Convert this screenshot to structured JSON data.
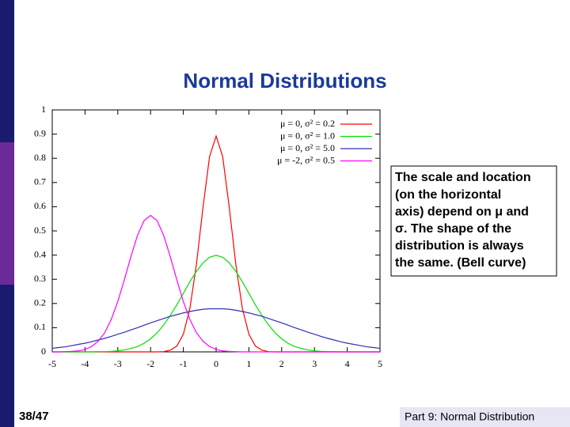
{
  "slide": {
    "title": "Normal Distributions",
    "callout": [
      "The scale and location",
      "(on the horizontal",
      "axis) depend on μ and",
      "σ.  The shape of the",
      "distribution is always",
      "the same. (Bell curve)"
    ],
    "page_number": "38/47",
    "footer": "Part 9: Normal Distribution"
  },
  "chart_data": {
    "type": "line",
    "x": [
      -5,
      -4.8,
      -4.6,
      -4.4,
      -4.2,
      -4,
      -3.8,
      -3.6,
      -3.4,
      -3.2,
      -3,
      -2.8,
      -2.6,
      -2.4,
      -2.2,
      -2,
      -1.8,
      -1.6,
      -1.4,
      -1.2,
      -1,
      -0.8,
      -0.6,
      -0.4,
      -0.2,
      0,
      0.2,
      0.4,
      0.6,
      0.8,
      1,
      1.2,
      1.4,
      1.6,
      1.8,
      2,
      2.2,
      2.4,
      2.6,
      2.8,
      3,
      3.2,
      3.4,
      3.6,
      3.8,
      4,
      4.2,
      4.4,
      4.6,
      4.8,
      5
    ],
    "series": [
      {
        "name": "μ =  0, σ² = 0.2",
        "color": "#ff0000",
        "values": [
          0,
          0,
          0,
          0,
          0,
          0,
          0,
          0,
          0,
          0,
          0,
          0,
          0,
          0,
          0,
          0,
          0,
          0.001,
          0.007,
          0.024,
          0.073,
          0.18,
          0.363,
          0.598,
          0.807,
          0.892,
          0.807,
          0.598,
          0.363,
          0.18,
          0.073,
          0.024,
          0.007,
          0.001,
          0,
          0,
          0,
          0,
          0,
          0,
          0,
          0,
          0,
          0,
          0,
          0,
          0,
          0,
          0,
          0,
          0
        ]
      },
      {
        "name": "μ =  0, σ² = 1.0",
        "color": "#00e000",
        "values": [
          0,
          0,
          0,
          0,
          0,
          0,
          0,
          0.001,
          0.001,
          0.002,
          0.004,
          0.008,
          0.014,
          0.022,
          0.035,
          0.054,
          0.079,
          0.111,
          0.15,
          0.194,
          0.242,
          0.29,
          0.333,
          0.368,
          0.391,
          0.399,
          0.391,
          0.368,
          0.333,
          0.29,
          0.242,
          0.194,
          0.15,
          0.111,
          0.079,
          0.054,
          0.035,
          0.022,
          0.014,
          0.008,
          0.004,
          0.002,
          0.001,
          0.001,
          0,
          0,
          0,
          0,
          0,
          0,
          0
        ]
      },
      {
        "name": "μ =  0, σ² = 5.0",
        "color": "#3030b0",
        "values": [
          0.015,
          0.018,
          0.021,
          0.026,
          0.031,
          0.036,
          0.042,
          0.049,
          0.056,
          0.064,
          0.073,
          0.081,
          0.091,
          0.1,
          0.11,
          0.12,
          0.129,
          0.138,
          0.147,
          0.154,
          0.161,
          0.167,
          0.172,
          0.176,
          0.178,
          0.178,
          0.178,
          0.176,
          0.172,
          0.167,
          0.161,
          0.154,
          0.147,
          0.138,
          0.129,
          0.12,
          0.11,
          0.1,
          0.091,
          0.081,
          0.073,
          0.064,
          0.056,
          0.049,
          0.042,
          0.036,
          0.031,
          0.026,
          0.021,
          0.018,
          0.015
        ]
      },
      {
        "name": "μ = -2, σ² = 0.5",
        "color": "#ff00ff",
        "values": [
          0,
          0,
          0.001,
          0.002,
          0.004,
          0.01,
          0.022,
          0.044,
          0.079,
          0.134,
          0.208,
          0.298,
          0.394,
          0.481,
          0.542,
          0.564,
          0.542,
          0.481,
          0.394,
          0.298,
          0.208,
          0.134,
          0.079,
          0.044,
          0.022,
          0.01,
          0.004,
          0.002,
          0.001,
          0,
          0,
          0,
          0,
          0,
          0,
          0,
          0,
          0,
          0,
          0,
          0,
          0,
          0,
          0,
          0,
          0,
          0,
          0,
          0,
          0,
          0
        ]
      }
    ],
    "xlim": [
      -5,
      5
    ],
    "ylim": [
      0,
      1
    ],
    "xticks": [
      -5,
      -4,
      -3,
      -2,
      -1,
      0,
      1,
      2,
      3,
      4,
      5
    ],
    "yticks": [
      0,
      0.1,
      0.2,
      0.3,
      0.4,
      0.5,
      0.6,
      0.7,
      0.8,
      0.9,
      1
    ]
  }
}
